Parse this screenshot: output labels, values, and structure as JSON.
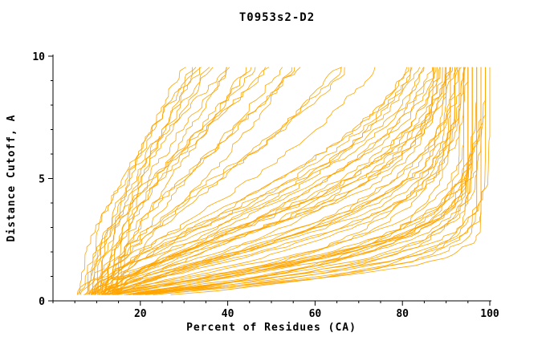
{
  "chart_data": {
    "type": "line",
    "title": "T0953s2-D2",
    "xlabel": "Percent of Residues (CA)",
    "ylabel": "Distance Cutoff, A",
    "xlim": [
      0,
      100
    ],
    "ylim": [
      0,
      10
    ],
    "x_major_ticks": [
      20,
      40,
      60,
      80,
      100
    ],
    "x_minor_tick_step": 5,
    "y_major_ticks": [
      0,
      5,
      10
    ],
    "y_minor_tick_step": 1,
    "grid": false,
    "legend": "none",
    "line_color": "#FFA500",
    "axis_color": "#000000",
    "background_color": "#FFFFFF",
    "curves_format": [
      "x_start_percent",
      "x_max_percent",
      "tau",
      "power"
    ],
    "curves": [
      [
        7,
        97,
        1.0,
        1.2
      ],
      [
        9,
        95,
        1.2,
        1.1
      ],
      [
        8,
        99,
        1.4,
        1.3
      ],
      [
        10,
        92,
        1.6,
        1.0
      ],
      [
        6,
        96,
        1.8,
        1.4
      ],
      [
        11,
        98,
        2.0,
        1.2
      ],
      [
        8,
        94,
        2.2,
        1.5
      ],
      [
        9,
        100,
        1.1,
        1.0
      ],
      [
        12,
        97,
        1.3,
        1.6
      ],
      [
        7,
        93,
        1.5,
        1.2
      ],
      [
        10,
        99,
        1.7,
        1.1
      ],
      [
        8,
        96,
        1.9,
        1.5
      ],
      [
        9,
        98,
        2.1,
        1.3
      ],
      [
        11,
        95,
        1.2,
        1.4
      ],
      [
        6,
        97,
        1.6,
        1.0
      ],
      [
        10,
        94,
        1.8,
        1.6
      ],
      [
        7,
        99,
        2.0,
        1.1
      ],
      [
        12,
        96,
        1.4,
        1.2
      ],
      [
        8,
        98,
        1.0,
        1.5
      ],
      [
        9,
        93,
        2.2,
        1.0
      ],
      [
        11,
        97,
        1.5,
        1.3
      ],
      [
        7,
        95,
        1.9,
        1.6
      ],
      [
        10,
        98,
        1.1,
        1.4
      ],
      [
        8,
        92,
        2.1,
        1.2
      ],
      [
        9,
        96,
        1.7,
        1.5
      ],
      [
        8,
        95,
        2.6,
        1.3
      ],
      [
        10,
        90,
        3.0,
        1.5
      ],
      [
        7,
        97,
        3.4,
        1.2
      ],
      [
        12,
        88,
        3.8,
        1.8
      ],
      [
        9,
        94,
        4.2,
        1.4
      ],
      [
        11,
        92,
        4.6,
        1.6
      ],
      [
        6,
        96,
        5.0,
        1.3
      ],
      [
        10,
        89,
        5.4,
        1.9
      ],
      [
        8,
        93,
        5.8,
        1.5
      ],
      [
        13,
        91,
        2.8,
        1.7
      ],
      [
        7,
        95,
        3.2,
        1.4
      ],
      [
        9,
        87,
        3.6,
        2.0
      ],
      [
        12,
        94,
        4.0,
        1.3
      ],
      [
        10,
        92,
        4.4,
        1.6
      ],
      [
        8,
        90,
        4.8,
        1.8
      ],
      [
        11,
        96,
        5.2,
        1.4
      ],
      [
        6,
        88,
        5.6,
        1.7
      ],
      [
        9,
        93,
        2.7,
        1.5
      ],
      [
        13,
        90,
        3.3,
        1.9
      ],
      [
        7,
        92,
        3.9,
        1.6
      ],
      [
        10,
        95,
        4.5,
        1.3
      ],
      [
        8,
        89,
        5.1,
        1.8
      ],
      [
        12,
        93,
        5.7,
        1.5
      ],
      [
        9,
        91,
        2.9,
        1.7
      ],
      [
        11,
        94,
        3.5,
        1.4
      ],
      [
        6,
        90,
        4.1,
        1.9
      ],
      [
        10,
        96,
        4.7,
        1.6
      ],
      [
        8,
        92,
        5.3,
        1.3
      ],
      [
        13,
        88,
        5.9,
        1.8
      ],
      [
        7,
        94,
        3.1,
        1.5
      ],
      [
        9,
        90,
        7.0,
        1.5
      ],
      [
        11,
        85,
        7.8,
        1.8
      ],
      [
        7,
        92,
        8.6,
        1.4
      ],
      [
        13,
        80,
        9.4,
        2.0
      ],
      [
        8,
        88,
        10.2,
        1.6
      ],
      [
        10,
        84,
        11.0,
        1.9
      ],
      [
        12,
        90,
        11.8,
        1.5
      ],
      [
        6,
        86,
        12.6,
        2.1
      ],
      [
        9,
        82,
        13.4,
        1.7
      ],
      [
        11,
        89,
        14.2,
        1.4
      ],
      [
        14,
        78,
        15.0,
        2.2
      ],
      [
        8,
        87,
        15.8,
        1.6
      ],
      [
        10,
        83,
        16.6,
        1.9
      ],
      [
        7,
        91,
        17.4,
        1.5
      ],
      [
        12,
        85,
        18.2,
        2.0
      ],
      [
        9,
        88,
        8.2,
        1.7
      ],
      [
        13,
        81,
        9.8,
        1.4
      ],
      [
        6,
        90,
        11.4,
        1.8
      ],
      [
        10,
        86,
        13.0,
        1.6
      ],
      [
        8,
        84,
        14.6,
        2.1
      ],
      [
        11,
        92,
        16.2,
        1.5
      ],
      [
        15,
        79,
        17.8,
        1.9
      ],
      [
        7,
        89,
        12.2,
        1.7
      ]
    ]
  }
}
